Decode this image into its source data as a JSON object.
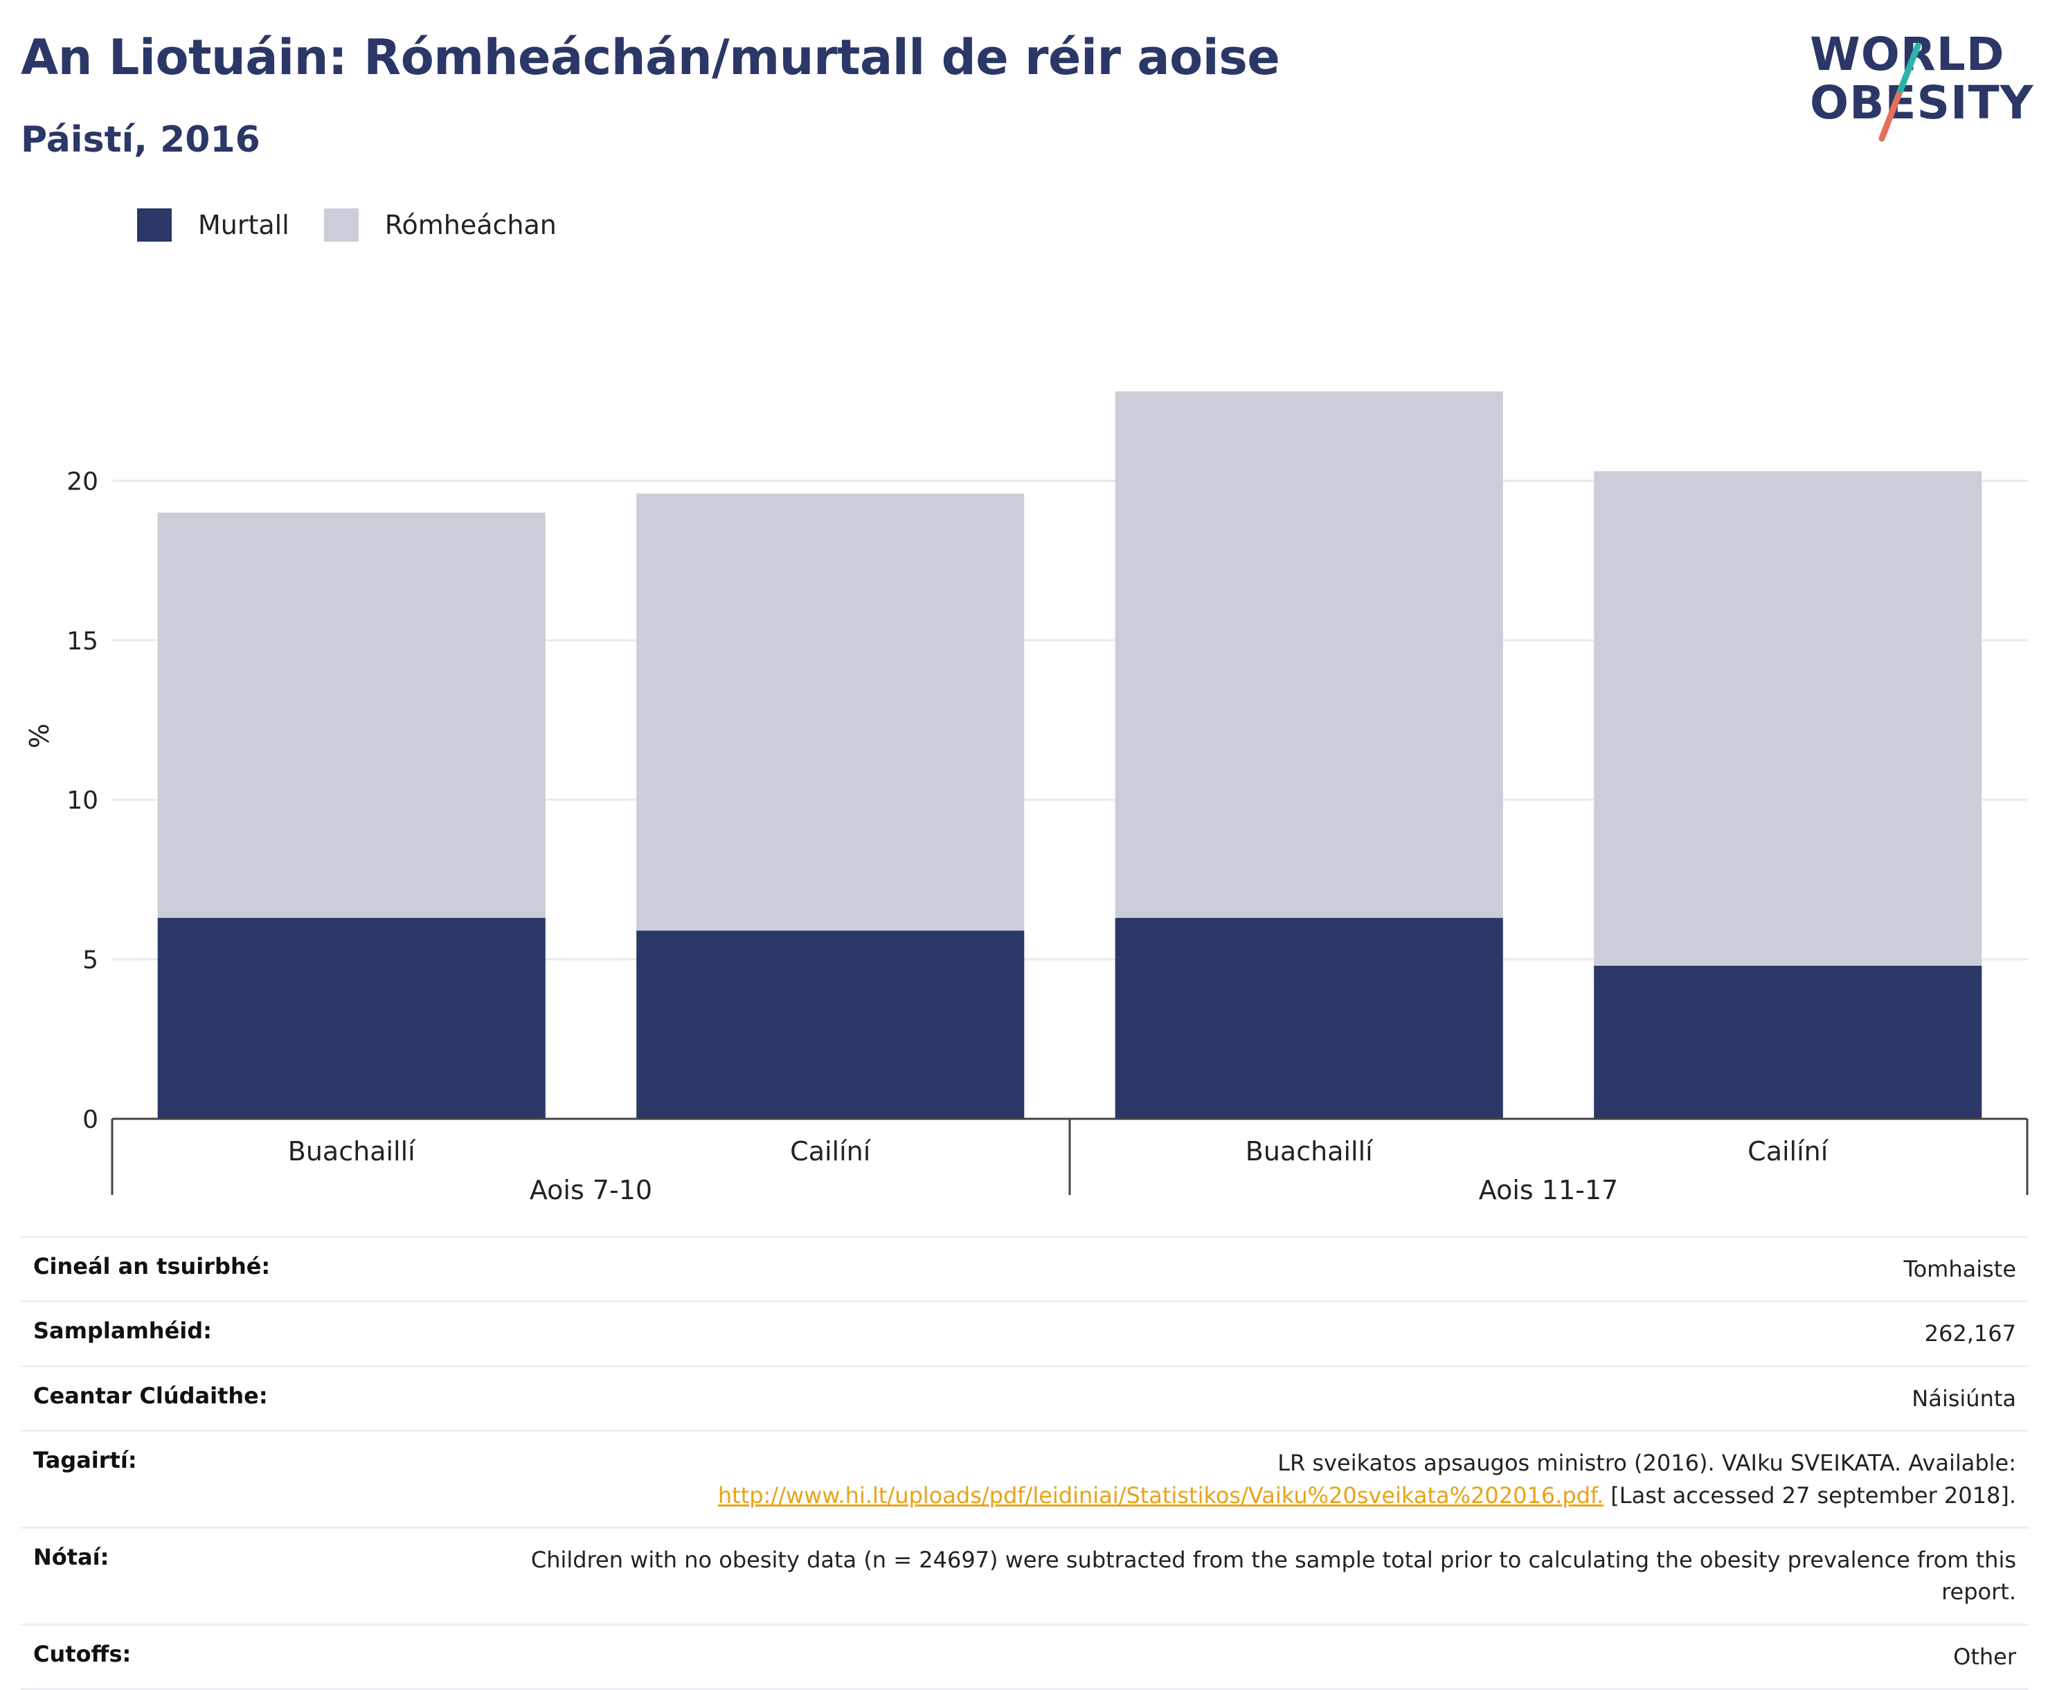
{
  "header": {
    "title": "An Liotuáin: Rómheáchán/murtall de réir aoise",
    "subtitle": "Páistí, 2016"
  },
  "logo": {
    "line1": "WORLD",
    "line2": "OBESITY",
    "accent_teal": "#2ab5a8",
    "accent_coral": "#e4705c"
  },
  "legend": {
    "items": [
      {
        "label": "Murtall",
        "color": "#2b3766"
      },
      {
        "label": "Rómheáchan",
        "color": "#cbcdd8"
      }
    ]
  },
  "chart_data": {
    "type": "bar",
    "stacked": true,
    "ylabel": "%",
    "ylim": [
      0,
      24
    ],
    "yticks": [
      0,
      5,
      10,
      15,
      20
    ],
    "grid": true,
    "legend_position": "top-left",
    "categories": [
      "Buachaillí",
      "Cailíní",
      "Buachaillí",
      "Cailíní"
    ],
    "groups": [
      {
        "label": "Aois 7-10",
        "members": [
          0,
          1
        ]
      },
      {
        "label": "Aois 11-17",
        "members": [
          2,
          3
        ]
      }
    ],
    "series": [
      {
        "name": "Murtall",
        "color": "#2b3766",
        "values": [
          6.3,
          5.9,
          6.3,
          4.8
        ]
      },
      {
        "name": "Rómheáchan",
        "color": "#cbcdd8",
        "values": [
          12.7,
          13.7,
          16.5,
          15.5
        ]
      }
    ]
  },
  "info": {
    "rows": [
      {
        "label": "Cineál an tsuirbhé:",
        "value": "Tomhaiste"
      },
      {
        "label": "Samplamhéid:",
        "value": "262,167"
      },
      {
        "label": "Ceantar Clúdaithe:",
        "value": "Náisiúnta"
      },
      {
        "label": "Tagairtí:",
        "value_line1": "LR sveikatos apsaugos ministro (2016). VAIku SVEIKATA. Available:",
        "link": "http://www.hi.lt/uploads/pdf/leidiniai/Statistikos/Vaiku%20sveikata%202016.pdf.",
        "value_line2_tail": " [Last accessed 27 september 2018]."
      },
      {
        "label": "Nótaí:",
        "value_line1": "Children with no obesity data (n = 24697) were subtracted from the sample total prior to calculating the obesity prevalence from this",
        "value_line2": "report."
      },
      {
        "label": "Cutoffs:",
        "value": "Other"
      }
    ]
  }
}
